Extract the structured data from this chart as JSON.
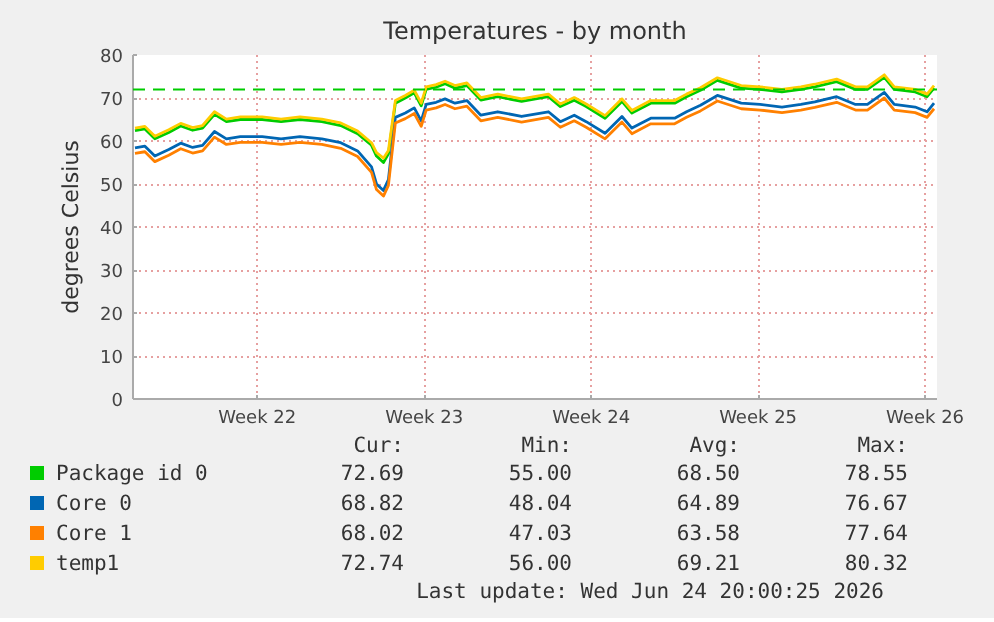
{
  "chart_data": {
    "type": "line",
    "title": "Temperatures - by month",
    "ylabel": "degrees Celsius",
    "x": [
      "2026-05-23T09:00",
      "2026-05-23T19:00",
      "2026-05-24T05:00",
      "2026-05-24T19:00",
      "2026-05-25T07:00",
      "2026-05-25T19:00",
      "2026-05-26T05:00",
      "2026-05-26T17:00",
      "2026-05-27T05:00",
      "2026-05-27T19:00",
      "2026-05-28T17:00",
      "2026-05-29T12:00",
      "2026-05-30T07:00",
      "2026-05-31T05:00",
      "2026-06-01T00:00",
      "2026-06-01T17:00",
      "2026-06-02T07:00",
      "2026-06-02T12:00",
      "2026-06-02T19:00",
      "2026-06-03T00:00",
      "2026-06-03T07:00",
      "2026-06-03T17:00",
      "2026-06-04T02:00",
      "2026-06-04T09:00",
      "2026-06-04T14:00",
      "2026-06-05T00:00",
      "2026-06-05T09:00",
      "2026-06-05T19:00",
      "2026-06-06T07:00",
      "2026-06-06T21:00",
      "2026-06-07T14:00",
      "2026-06-08T14:00",
      "2026-06-09T17:00",
      "2026-06-10T05:00",
      "2026-06-10T19:00",
      "2026-06-11T07:00",
      "2026-06-12T02:00",
      "2026-06-12T19:00",
      "2026-06-13T05:00",
      "2026-06-14T00:00",
      "2026-06-15T00:00",
      "2026-06-15T12:00",
      "2026-06-16T02:00",
      "2026-06-16T19:00",
      "2026-06-17T19:00",
      "2026-06-18T14:00",
      "2026-06-19T12:00",
      "2026-06-20T07:00",
      "2026-06-20T21:00",
      "2026-06-21T19:00",
      "2026-06-22T14:00",
      "2026-06-23T02:00",
      "2026-06-23T19:00",
      "2026-06-24T05:00",
      "2026-06-25T02:00",
      "2026-06-25T14:00",
      "2026-06-25T21:00"
    ],
    "series": [
      {
        "name": "Package id 0",
        "color": "#00cc00",
        "values": [
          62.4,
          62.8,
          60.5,
          62,
          63.5,
          62.5,
          63,
          66.2,
          64.5,
          65,
          65,
          64.5,
          65,
          64.5,
          63.6,
          61.7,
          59,
          56.5,
          55,
          57,
          68.8,
          70,
          71.2,
          68.2,
          72,
          72.5,
          73.3,
          72.3,
          72.9,
          69.5,
          70.3,
          69.2,
          70.3,
          68,
          69.5,
          68,
          65.3,
          69.2,
          66.5,
          68.8,
          68.8,
          70.3,
          71.8,
          74.1,
          72.3,
          72,
          71.4,
          72,
          72.6,
          73.8,
          72,
          72,
          74.8,
          72,
          71.4,
          70.3,
          72.3
        ]
      },
      {
        "name": "Core 0",
        "color": "#0066b3",
        "values": [
          58.4,
          58.8,
          56.5,
          58,
          59.5,
          58.5,
          59,
          62.2,
          60.5,
          61,
          61,
          60.5,
          61,
          60.5,
          59.6,
          57.7,
          54,
          50,
          48.5,
          51,
          65.5,
          66.5,
          67.7,
          64.7,
          68.5,
          69,
          69.8,
          68.8,
          69.4,
          66,
          66.8,
          65.7,
          66.8,
          64.5,
          66,
          64.5,
          61.8,
          65.7,
          63,
          65.3,
          65.3,
          66.8,
          68.3,
          70.6,
          68.8,
          68.5,
          67.9,
          68.5,
          69.1,
          70.3,
          68.5,
          68.5,
          71.3,
          68.5,
          67.9,
          66.8,
          68.8
        ]
      },
      {
        "name": "Core 1",
        "color": "#ff8000",
        "values": [
          57.1,
          57.5,
          55.2,
          56.7,
          58.2,
          57.2,
          57.7,
          60.9,
          59.2,
          59.7,
          59.7,
          59.2,
          59.7,
          59.2,
          58.3,
          56.4,
          52.7,
          48.7,
          47.2,
          49.7,
          64.2,
          65.2,
          66.4,
          63.4,
          67.2,
          67.7,
          68.5,
          67.5,
          68.1,
          64.7,
          65.5,
          64.4,
          65.5,
          63.2,
          64.7,
          63.2,
          60.5,
          64.4,
          61.7,
          64,
          64,
          65.5,
          67,
          69.3,
          67.5,
          67.2,
          66.6,
          67.2,
          67.8,
          69,
          67.2,
          67.2,
          70,
          67.2,
          66.6,
          65.5,
          67.5
        ]
      },
      {
        "name": "temp1",
        "color": "#ffcc00",
        "values": [
          63,
          63.4,
          61.1,
          62.6,
          64.1,
          63.1,
          63.6,
          66.8,
          65.1,
          65.6,
          65.6,
          65.1,
          65.6,
          65.1,
          64.2,
          62.3,
          59.6,
          57.3,
          56,
          57.8,
          69.4,
          70.6,
          71.8,
          68.8,
          72.6,
          73.1,
          73.9,
          72.9,
          73.5,
          70.1,
          70.9,
          69.8,
          70.9,
          68.6,
          70.1,
          68.6,
          65.9,
          69.8,
          67.1,
          69.4,
          69.4,
          70.9,
          72.4,
          74.7,
          72.9,
          72.6,
          72,
          72.6,
          73.2,
          74.4,
          72.6,
          72.6,
          75.4,
          72.6,
          72,
          70.9,
          72.9
        ]
      }
    ],
    "xlim": [
      "2026-05-23T07:00",
      "2026-06-26T00:00"
    ],
    "xticks": [
      {
        "value": "2026-05-28T12:00",
        "label": "Week 22"
      },
      {
        "value": "2026-06-04T12:00",
        "label": "Week 23"
      },
      {
        "value": "2026-06-11T12:00",
        "label": "Week 24"
      },
      {
        "value": "2026-06-18T12:00",
        "label": "Week 25"
      },
      {
        "value": "2026-06-25T12:00",
        "label": "Week 26"
      }
    ],
    "ylim": [
      0,
      80
    ],
    "yticks": [
      0,
      10,
      20,
      30,
      40,
      50,
      60,
      70,
      80
    ],
    "ref_lines": [
      {
        "axis": "y",
        "value": 72,
        "color": "#00cc00",
        "line_style": "dashed"
      }
    ],
    "grid": true,
    "legend": "bottom",
    "line_style": "solid",
    "marker": "none",
    "annotations": [
      "Cur:",
      "Min:",
      "Avg:",
      "Max:",
      "72.69",
      "55.00",
      "68.50",
      "78.55",
      "68.82",
      "48.04",
      "64.89",
      "76.67",
      "68.02",
      "47.03",
      "63.58",
      "77.64",
      "72.74",
      "56.00",
      "69.21",
      "80.32",
      "Last update: Wed Jun 24 20:00:25 2026"
    ]
  }
}
